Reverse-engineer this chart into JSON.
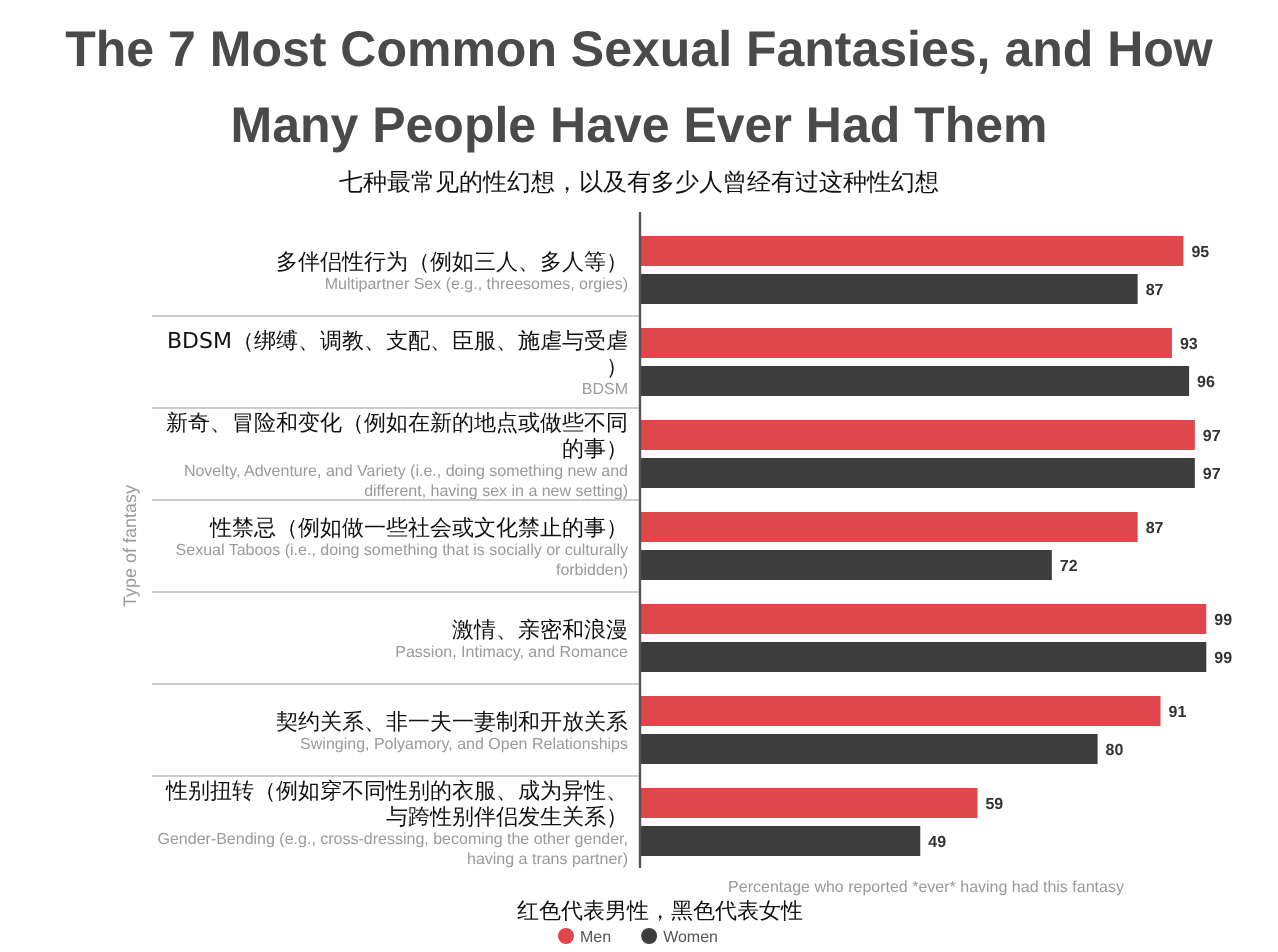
{
  "chart_data": {
    "type": "bar",
    "orientation": "horizontal",
    "title": "The 7 Most Common Sexual Fantasies, and How Many People Have Ever Had Them",
    "subtitle": "七种最常见的性幻想，以及有多少人曾经有过这种性幻想",
    "ylabel": "Type of fantasy",
    "xlabel": "Percentage who reported *ever* having had this fantasy",
    "categories": [
      "Multipartner Sex (e.g., threesomes, orgies)",
      "BDSM",
      "Novelty, Adventure, and Variety (i.e., doing something new and different, having sex in a new setting)",
      "Sexual Taboos (i.e., doing something that is socially or culturally forbidden)",
      "Passion, Intimacy, and Romance",
      "Swinging, Polyamory, and Open Relationships",
      "Gender-Bending (e.g., cross-dressing, becoming the other gender, having a trans partner)"
    ],
    "series": [
      {
        "name": "Men",
        "color": "#e0474c",
        "values": [
          95,
          93,
          97,
          87,
          99,
          91,
          59
        ]
      },
      {
        "name": "Women",
        "color": "#3d3d3d",
        "values": [
          87,
          96,
          97,
          72,
          99,
          80,
          49
        ]
      }
    ],
    "xlim": [
      0,
      100
    ],
    "data_labels": true,
    "legend": "bottom",
    "annotations": [
      "多伴侣性行为（例如三人、多人等）",
      "BDSM（绑缚、调教、支配、臣服、施虐与受虐）",
      "新奇、冒险和变化（例如在新的地点或做些不同的事）",
      "性禁忌（例如做一些社会或文化禁止的事）",
      "激情、亲密和浪漫",
      "契约关系、非一夫一妻制和开放关系",
      "性别扭转（例如穿不同性别的衣服、成为异性、与跨性别伴侣发生关系）",
      "红色代表男性，黑色代表女性"
    ]
  }
}
